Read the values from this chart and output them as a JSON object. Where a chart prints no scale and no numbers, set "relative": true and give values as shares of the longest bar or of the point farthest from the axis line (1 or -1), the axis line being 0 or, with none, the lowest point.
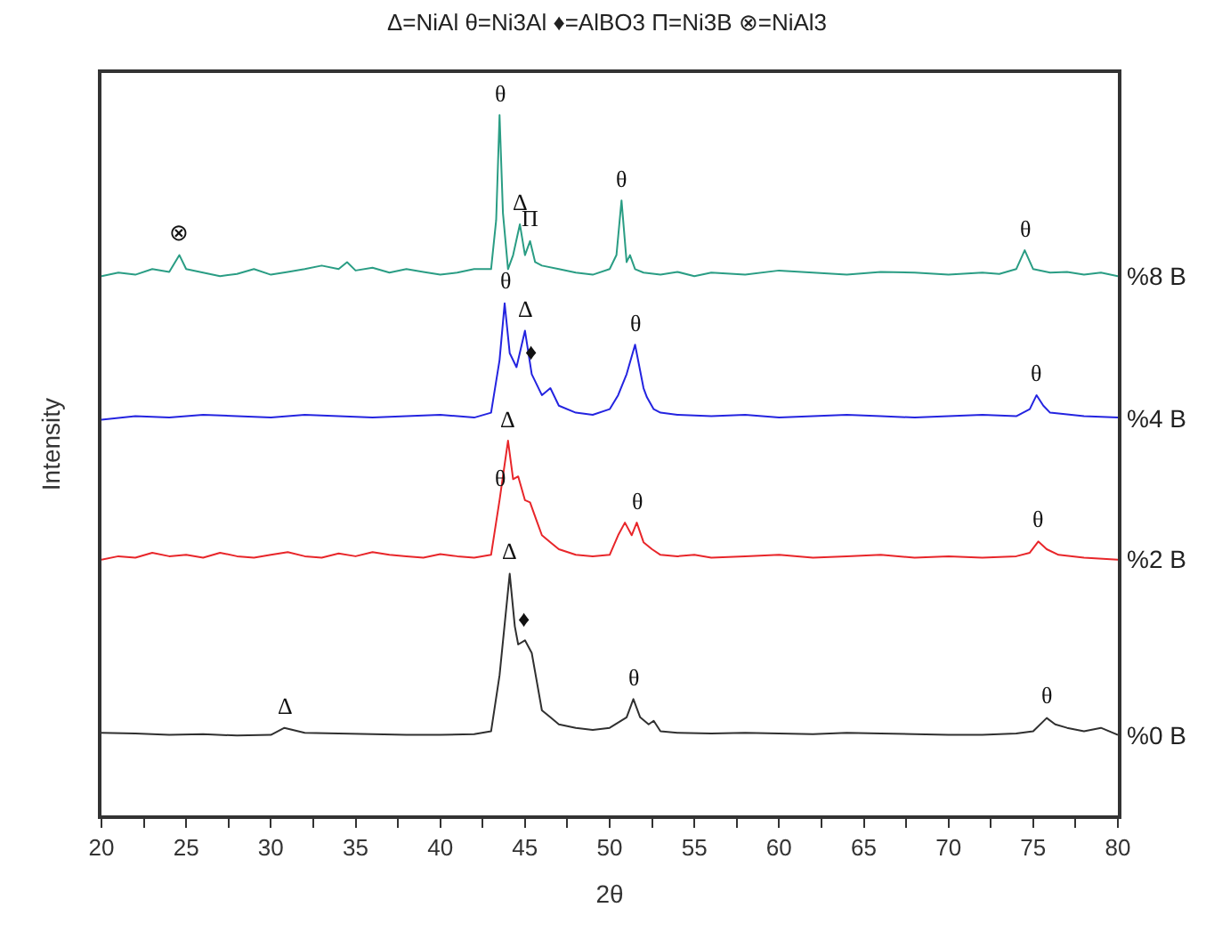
{
  "chart_data": {
    "type": "line",
    "title": "Δ=NiAl θ=Ni3Al ♦=AlBO3 Π=Ni3B ⊗=NiAl3",
    "xlabel": "2θ",
    "ylabel": "Intensity",
    "relative": true,
    "xlim": [
      20,
      80
    ],
    "xticks": [
      20,
      {
        "value": 22.5,
        "label": null
      },
      25,
      {
        "value": 27.5,
        "label": null
      },
      30,
      {
        "value": 32.5,
        "label": null
      },
      35,
      {
        "value": 37.5,
        "label": null
      },
      40,
      {
        "value": 42.5,
        "label": null
      },
      45,
      {
        "value": 47.5,
        "label": null
      },
      50,
      {
        "value": 52.5,
        "label": null
      },
      55,
      {
        "value": 57.5,
        "label": null
      },
      60,
      {
        "value": 62.5,
        "label": null
      },
      65,
      {
        "value": 67.5,
        "label": null
      },
      70,
      {
        "value": 72.5,
        "label": null
      },
      75,
      {
        "value": 77.5,
        "label": null
      },
      80
    ],
    "tick_labels": "x",
    "legend": false,
    "marker": "none",
    "line_style": "solid",
    "series": [
      {
        "name": "%8 B",
        "color": "#2a9d84",
        "x": [
          20,
          21,
          22,
          23,
          24,
          24.6,
          25,
          26,
          27,
          28,
          29,
          30,
          31,
          32,
          33,
          34,
          34.5,
          35,
          36,
          37,
          38,
          39,
          40,
          41,
          42,
          43,
          43.3,
          43.5,
          43.7,
          44,
          44.3,
          44.7,
          45,
          45.3,
          45.6,
          46,
          47,
          48,
          49,
          50,
          50.4,
          50.7,
          51,
          51.2,
          51.5,
          52,
          53,
          54,
          55,
          56,
          58,
          60,
          62,
          64,
          66,
          68,
          70,
          72,
          73,
          74,
          74.5,
          75,
          76,
          77,
          78,
          79,
          80
        ],
        "values": [
          0.77,
          0.775,
          0.772,
          0.78,
          0.776,
          0.8,
          0.78,
          0.775,
          0.77,
          0.773,
          0.78,
          0.772,
          0.776,
          0.78,
          0.785,
          0.78,
          0.79,
          0.778,
          0.782,
          0.775,
          0.78,
          0.776,
          0.772,
          0.775,
          0.78,
          0.78,
          0.85,
          1.0,
          0.86,
          0.78,
          0.8,
          0.844,
          0.8,
          0.82,
          0.79,
          0.785,
          0.78,
          0.775,
          0.772,
          0.78,
          0.8,
          0.878,
          0.79,
          0.8,
          0.78,
          0.775,
          0.772,
          0.776,
          0.77,
          0.775,
          0.772,
          0.778,
          0.775,
          0.772,
          0.776,
          0.775,
          0.772,
          0.775,
          0.773,
          0.78,
          0.807,
          0.78,
          0.775,
          0.776,
          0.772,
          0.775,
          0.77
        ]
      },
      {
        "name": "%4 B",
        "color": "#2424e0",
        "x": [
          20,
          22,
          24,
          26,
          28,
          30,
          32,
          34,
          36,
          38,
          40,
          42,
          43,
          43.5,
          43.8,
          44.1,
          44.5,
          45,
          45.4,
          46,
          46.5,
          47,
          48,
          49,
          50,
          50.5,
          51,
          51.5,
          52,
          52.2,
          52.6,
          53,
          54,
          56,
          58,
          60,
          62,
          64,
          66,
          68,
          70,
          72,
          74,
          74.8,
          75.2,
          75.6,
          76,
          78,
          80
        ],
        "values": [
          0.565,
          0.57,
          0.568,
          0.572,
          0.57,
          0.568,
          0.572,
          0.57,
          0.568,
          0.57,
          0.572,
          0.568,
          0.575,
          0.65,
          0.731,
          0.66,
          0.64,
          0.692,
          0.63,
          0.6,
          0.61,
          0.585,
          0.575,
          0.572,
          0.58,
          0.6,
          0.63,
          0.672,
          0.61,
          0.597,
          0.58,
          0.575,
          0.572,
          0.57,
          0.572,
          0.568,
          0.57,
          0.572,
          0.57,
          0.568,
          0.57,
          0.572,
          0.57,
          0.58,
          0.6,
          0.585,
          0.575,
          0.57,
          0.568
        ]
      },
      {
        "name": "%2 B",
        "color": "#e8262a",
        "x": [
          20,
          21,
          22,
          23,
          24,
          25,
          26,
          27,
          28,
          29,
          30,
          31,
          32,
          33,
          34,
          35,
          36,
          37,
          38,
          39,
          40,
          41,
          42,
          43,
          43.5,
          44,
          44.3,
          44.6,
          45,
          45.3,
          45.7,
          46,
          46.5,
          47,
          48,
          49,
          50,
          50.5,
          50.9,
          51.3,
          51.6,
          52,
          52.5,
          53,
          54,
          55,
          56,
          58,
          60,
          62,
          64,
          66,
          68,
          70,
          72,
          74,
          74.8,
          75.3,
          75.8,
          76.5,
          78,
          80
        ],
        "values": [
          0.365,
          0.37,
          0.368,
          0.375,
          0.37,
          0.372,
          0.368,
          0.375,
          0.37,
          0.368,
          0.372,
          0.376,
          0.37,
          0.368,
          0.374,
          0.37,
          0.376,
          0.372,
          0.37,
          0.368,
          0.373,
          0.37,
          0.368,
          0.372,
          0.45,
          0.535,
          0.48,
          0.484,
          0.45,
          0.447,
          0.42,
          0.4,
          0.39,
          0.38,
          0.372,
          0.37,
          0.372,
          0.4,
          0.418,
          0.4,
          0.418,
          0.39,
          0.38,
          0.372,
          0.37,
          0.372,
          0.368,
          0.37,
          0.372,
          0.368,
          0.37,
          0.372,
          0.368,
          0.37,
          0.368,
          0.37,
          0.375,
          0.391,
          0.38,
          0.372,
          0.368,
          0.365
        ]
      },
      {
        "name": "%0 B",
        "color": "#303030",
        "x": [
          20,
          22,
          24,
          26,
          28,
          30,
          30.8,
          32,
          34,
          36,
          38,
          40,
          42,
          43,
          43.5,
          44.1,
          44.4,
          44.6,
          45,
          45.4,
          46,
          46.5,
          47,
          48,
          49,
          50,
          51,
          51.4,
          51.8,
          52.3,
          52.6,
          53,
          54,
          56,
          58,
          60,
          62,
          64,
          66,
          68,
          70,
          72,
          74,
          75,
          75.8,
          76.3,
          77,
          78,
          79,
          80
        ],
        "values": [
          0.118,
          0.117,
          0.115,
          0.116,
          0.114,
          0.115,
          0.125,
          0.118,
          0.117,
          0.116,
          0.115,
          0.115,
          0.116,
          0.12,
          0.2,
          0.345,
          0.27,
          0.244,
          0.25,
          0.232,
          0.15,
          0.14,
          0.13,
          0.125,
          0.122,
          0.125,
          0.14,
          0.166,
          0.14,
          0.13,
          0.135,
          0.12,
          0.118,
          0.117,
          0.118,
          0.117,
          0.116,
          0.118,
          0.117,
          0.116,
          0.115,
          0.115,
          0.117,
          0.12,
          0.139,
          0.13,
          0.125,
          0.12,
          0.125,
          0.115
        ]
      }
    ],
    "annotations": [
      {
        "text": "⊗",
        "x": 24.6,
        "y": 0.8
      },
      {
        "text": "θ",
        "x": 43.5,
        "y": 1.0
      },
      {
        "text": "Δ",
        "x": 44.7,
        "y": 0.844
      },
      {
        "text": "Π",
        "x": 45.3,
        "y": 0.82
      },
      {
        "text": "θ",
        "x": 50.7,
        "y": 0.878
      },
      {
        "text": "θ",
        "x": 74.5,
        "y": 0.807
      },
      {
        "text": "θ",
        "x": 43.8,
        "y": 0.731
      },
      {
        "text": "Δ",
        "x": 45,
        "y": 0.692
      },
      {
        "text": "♦",
        "x": 45.4,
        "y": 0.63
      },
      {
        "text": "θ",
        "x": 51.5,
        "y": 0.672
      },
      {
        "text": "θ",
        "x": 75.2,
        "y": 0.6
      },
      {
        "text": "Δ",
        "x": 44,
        "y": 0.535
      },
      {
        "text": "θ",
        "x": 43.5,
        "y": 0.45
      },
      {
        "text": "θ",
        "x": 51.6,
        "y": 0.418
      },
      {
        "text": "θ",
        "x": 75.3,
        "y": 0.391
      },
      {
        "text": "Δ",
        "x": 44.1,
        "y": 0.345
      },
      {
        "text": "♦",
        "x": 45,
        "y": 0.25
      },
      {
        "text": "θ",
        "x": 51.4,
        "y": 0.166
      },
      {
        "text": "Δ",
        "x": 30.8,
        "y": 0.125
      },
      {
        "text": "θ",
        "x": 75.8,
        "y": 0.139
      }
    ]
  }
}
